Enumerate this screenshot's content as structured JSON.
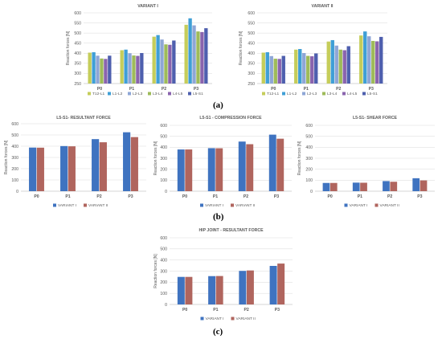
{
  "panel_labels": [
    "(a)",
    "(b)",
    "(c)"
  ],
  "colors": {
    "segments": [
      "#C5CD5A",
      "#3F9FD6",
      "#8EA6D6",
      "#9EBB59",
      "#8A64AE",
      "#4E5FAE"
    ],
    "variants": [
      "#3F73C0",
      "#B0655E"
    ],
    "grid": "#D9D9D9",
    "text": "#595959"
  },
  "chart_data": [
    {
      "id": "variant-i",
      "type": "bar",
      "title": "VARIANT I",
      "ylabel": "Reaction forces [N]",
      "xlabel": "",
      "categories": [
        "P0",
        "P1",
        "P2",
        "P3"
      ],
      "ylim": [
        250,
        600
      ],
      "yticks": [
        250,
        300,
        350,
        400,
        450,
        500,
        550,
        600
      ],
      "grid": true,
      "legend": "bottom",
      "series": [
        {
          "name": "T12-L1",
          "values": [
            403,
            415,
            482,
            541
          ]
        },
        {
          "name": "L1-L2",
          "values": [
            405,
            418,
            490,
            573
          ]
        },
        {
          "name": "L2-L3",
          "values": [
            388,
            400,
            468,
            538
          ]
        },
        {
          "name": "L3-L4",
          "values": [
            374,
            389,
            444,
            508
          ]
        },
        {
          "name": "L4-L5",
          "values": [
            372,
            387,
            442,
            505
          ]
        },
        {
          "name": "L5-S1",
          "values": [
            388,
            401,
            463,
            524
          ]
        }
      ]
    },
    {
      "id": "variant-ii",
      "type": "bar",
      "title": "VARIANT II",
      "ylabel": "Reaction forces [N]",
      "xlabel": "",
      "categories": [
        "P0",
        "P1",
        "P2",
        "P3"
      ],
      "ylim": [
        250,
        600
      ],
      "yticks": [
        250,
        300,
        350,
        400,
        450,
        500,
        550,
        600
      ],
      "grid": true,
      "legend": "bottom",
      "series": [
        {
          "name": "T12-L1",
          "values": [
            403,
            418,
            458,
            488
          ]
        },
        {
          "name": "L1-L2",
          "values": [
            405,
            421,
            465,
            508
          ]
        },
        {
          "name": "L2-L3",
          "values": [
            386,
            401,
            438,
            484
          ]
        },
        {
          "name": "L3-L4",
          "values": [
            373,
            387,
            418,
            461
          ]
        },
        {
          "name": "L4-L5",
          "values": [
            372,
            385,
            415,
            459
          ]
        },
        {
          "name": "L5-S1",
          "values": [
            387,
            399,
            435,
            481
          ]
        }
      ]
    },
    {
      "id": "l5s1-resultant",
      "type": "bar",
      "title": "L5-S1- RESULTANT FORCE",
      "ylabel": "Reaction forces [N]",
      "xlabel": "",
      "categories": [
        "P0",
        "P1",
        "P2",
        "P3"
      ],
      "ylim": [
        0,
        600
      ],
      "yticks": [
        0,
        100,
        200,
        300,
        400,
        500,
        600
      ],
      "grid": true,
      "legend": "bottom",
      "series": [
        {
          "name": "VARIANT I",
          "values": [
            388,
            401,
            463,
            524
          ]
        },
        {
          "name": "VARIANT II",
          "values": [
            387,
            399,
            435,
            481
          ]
        }
      ]
    },
    {
      "id": "l5s1-compression",
      "type": "bar",
      "title": "L5-S1 - COMPRESSION FORCE",
      "ylabel": "Reaction forces [N]",
      "xlabel": "",
      "categories": [
        "P0",
        "P1",
        "P2",
        "P3"
      ],
      "ylim": [
        0,
        600
      ],
      "yticks": [
        0,
        100,
        200,
        300,
        400,
        500,
        600
      ],
      "grid": true,
      "legend": "bottom",
      "series": [
        {
          "name": "VARIANT I",
          "values": [
            380,
            392,
            452,
            515
          ]
        },
        {
          "name": "VARIANT II",
          "values": [
            380,
            391,
            428,
            478
          ]
        }
      ]
    },
    {
      "id": "l5s1-shear",
      "type": "bar",
      "title": "L5-S1- SHEAR FORCE",
      "ylabel": "Reaction forces [N]",
      "xlabel": "",
      "categories": [
        "P0",
        "P1",
        "P2",
        "P3"
      ],
      "ylim": [
        0,
        600
      ],
      "yticks": [
        0,
        100,
        200,
        300,
        400,
        500,
        600
      ],
      "grid": true,
      "legend": "bottom",
      "series": [
        {
          "name": "VARIANT I",
          "values": [
            75,
            78,
            92,
            118
          ]
        },
        {
          "name": "VARIANT II",
          "values": [
            75,
            77,
            86,
            98
          ]
        }
      ]
    },
    {
      "id": "hip-resultant",
      "type": "bar",
      "title": "HIP JOINT - RESULTANT FORCE",
      "ylabel": "Reaction forces [N]",
      "xlabel": "",
      "categories": [
        "P0",
        "P1",
        "P2",
        "P3"
      ],
      "ylim": [
        0,
        600
      ],
      "yticks": [
        0,
        100,
        200,
        300,
        400,
        500,
        600
      ],
      "grid": true,
      "legend": "bottom",
      "series": [
        {
          "name": "VARIANT I",
          "values": [
            248,
            255,
            302,
            347
          ]
        },
        {
          "name": "VARIANT II",
          "values": [
            248,
            256,
            306,
            368
          ]
        }
      ]
    }
  ]
}
